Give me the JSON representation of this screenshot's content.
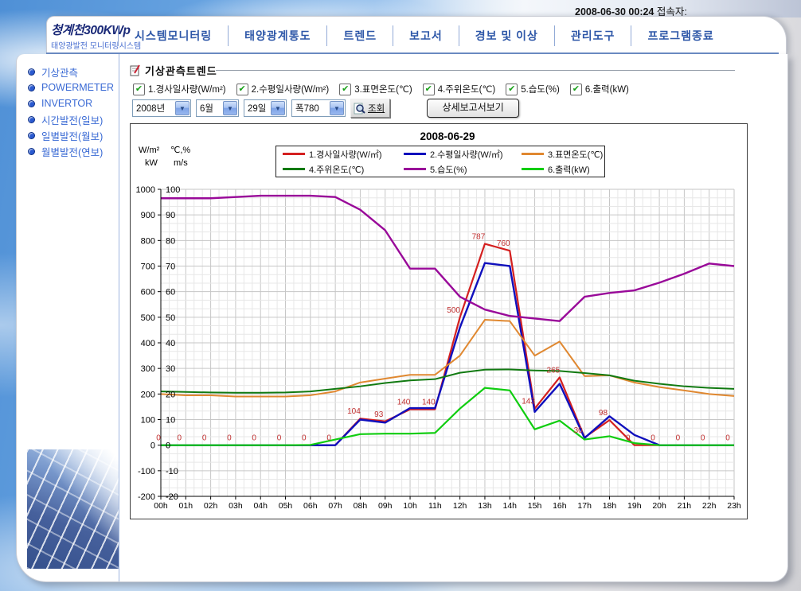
{
  "icons": {
    "dropdown_arrow": "▼",
    "checkmark": "✔"
  },
  "topbar": {
    "datetime": "2008-06-30 00:24",
    "visitor_label": "접속자:"
  },
  "logo": {
    "title": "청계천300KWp",
    "subtitle": "태양광발전 모니터링시스템"
  },
  "nav": {
    "items": [
      "시스템모니터링",
      "태양광계통도",
      "트렌드",
      "보고서",
      "경보 및 이상",
      "관리도구",
      "프로그램종료"
    ]
  },
  "sidebar": {
    "items": [
      "기상관측",
      "POWERMETER",
      "INVERTOR",
      "시간발전(일보)",
      "일별발전(월보)",
      "월별발전(연보)"
    ]
  },
  "section": {
    "title": "기상관측트렌드"
  },
  "checkboxes": [
    {
      "label": "1.경사일사량(W/m²)",
      "checked": true
    },
    {
      "label": "2.수평일사량(W/m²)",
      "checked": true
    },
    {
      "label": "3.표면온도(℃)",
      "checked": true
    },
    {
      "label": "4.주위온도(℃)",
      "checked": true
    },
    {
      "label": "5.습도(%)",
      "checked": true
    },
    {
      "label": "6.출력(kW)",
      "checked": true
    }
  ],
  "filters": {
    "year": "2008년",
    "month": "6월",
    "day": "29일",
    "width": "폭780",
    "search_label": "조회",
    "detail_report_label": "상세보고서보기"
  },
  "chart_data": {
    "type": "line",
    "title": "2008-06-29",
    "unit_labels": [
      "W/m²",
      "℃,%",
      "kW",
      "m/s"
    ],
    "x": [
      "00h",
      "01h",
      "02h",
      "03h",
      "04h",
      "05h",
      "06h",
      "07h",
      "08h",
      "09h",
      "10h",
      "11h",
      "12h",
      "13h",
      "14h",
      "15h",
      "16h",
      "17h",
      "18h",
      "19h",
      "20h",
      "21h",
      "22h",
      "23h"
    ],
    "left_axis": {
      "min": -200,
      "max": 1000,
      "step": 100
    },
    "right_axis": {
      "min": -20,
      "max": 100,
      "step": 10
    },
    "grid": true,
    "legend_position": "top-center",
    "series": [
      {
        "name": "1.경사일사량(W/㎡)",
        "color": "#d42020",
        "width": 2.2,
        "scale": 1,
        "values": [
          0,
          0,
          0,
          0,
          0,
          0,
          0,
          0,
          104,
          93,
          140,
          140,
          500,
          787,
          760,
          143,
          265,
          30,
          98,
          0,
          0,
          0,
          0,
          0
        ],
        "point_labels": [
          "0",
          "0",
          "0",
          "0",
          "0",
          "0",
          "0",
          "0",
          "104",
          "93",
          "140",
          "140",
          "500",
          "787",
          "760",
          "143",
          "265",
          "30",
          "98",
          "0",
          "0",
          "0",
          "0",
          "0"
        ]
      },
      {
        "name": "2.수평일사량(W/㎡)",
        "color": "#1010bd",
        "width": 2.4,
        "scale": 1,
        "values": [
          0,
          0,
          0,
          0,
          0,
          0,
          0,
          0,
          100,
          88,
          145,
          145,
          460,
          712,
          700,
          130,
          240,
          28,
          113,
          40,
          0,
          0,
          0,
          0
        ]
      },
      {
        "name": "3.표면온도(℃)",
        "color": "#e08830",
        "width": 2,
        "scale": 10,
        "values": [
          20,
          19.5,
          19.5,
          19,
          19,
          19,
          19.5,
          21,
          24.5,
          26,
          27.5,
          27.5,
          35,
          49,
          48.5,
          35,
          40.5,
          27,
          27.3,
          24.5,
          22.7,
          21.4,
          20,
          19.2
        ]
      },
      {
        "name": "4.주위온도(℃)",
        "color": "#117a11",
        "width": 2,
        "scale": 10,
        "values": [
          21,
          20.8,
          20.6,
          20.5,
          20.5,
          20.6,
          21,
          22,
          23,
          24.3,
          25.3,
          25.8,
          28.3,
          29.5,
          29.6,
          29.2,
          29,
          28.2,
          27.3,
          25.2,
          24,
          23,
          22.4,
          22
        ]
      },
      {
        "name": "5.습도(%)",
        "color": "#990999",
        "width": 2.4,
        "scale": 10,
        "values": [
          96.5,
          96.5,
          96.5,
          97,
          97.5,
          97.5,
          97.5,
          97,
          92,
          84,
          69,
          69,
          58,
          53,
          50.5,
          49.5,
          48.5,
          58,
          59.5,
          60.5,
          63.5,
          67,
          71,
          70
        ]
      },
      {
        "name": "6.출력(kW)",
        "color": "#10cd10",
        "width": 2.2,
        "scale": 1,
        "values": [
          0,
          0,
          0,
          0,
          0,
          0,
          1,
          22,
          43,
          45,
          45,
          48,
          143,
          224,
          214,
          62,
          96,
          22,
          35,
          8,
          0,
          0,
          0,
          0
        ]
      }
    ],
    "point_label_color": "#c03030"
  }
}
